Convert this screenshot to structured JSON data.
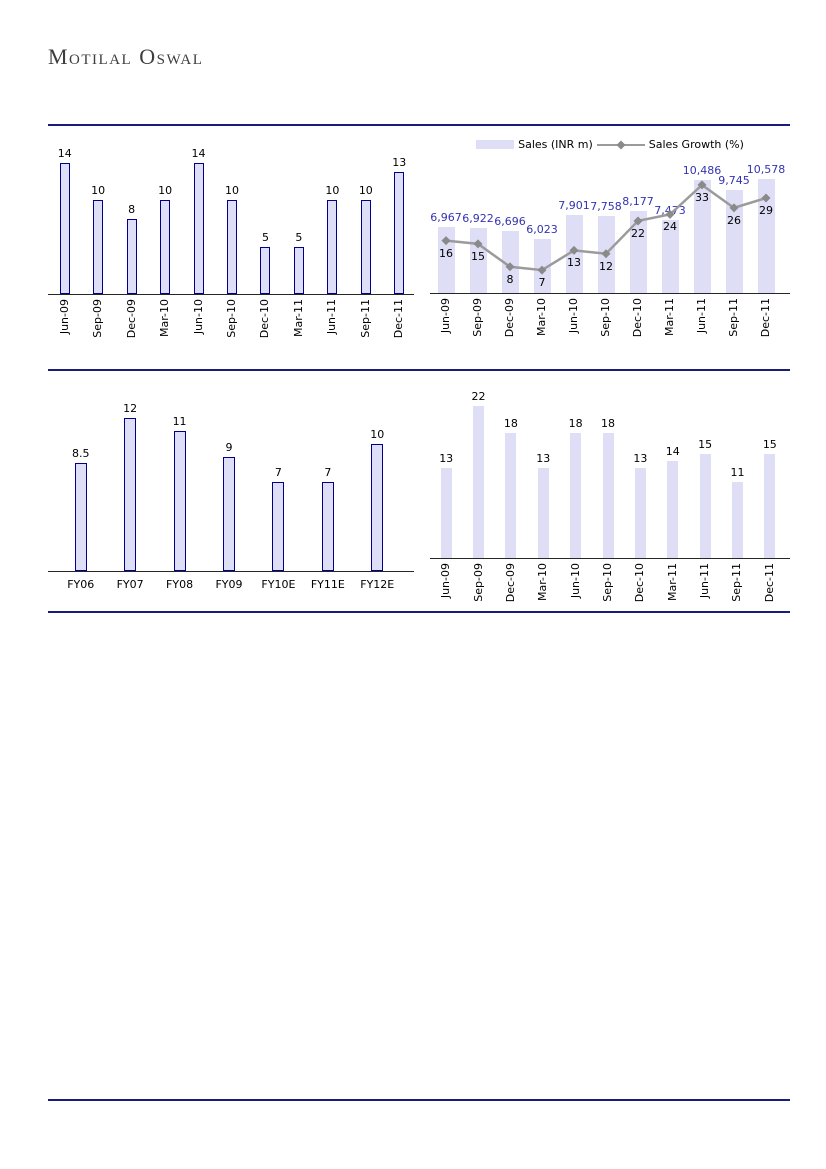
{
  "header": {
    "brand": "Motilal Oswal"
  },
  "colors": {
    "bar_fill": "#DEDEF6",
    "bar_border": "#00008B",
    "rule": "#1B1B7A",
    "axis": "#262626",
    "sales_label": "#3333B3",
    "growth_line": "#9B9B9B",
    "growth_marker": "#8A8A8A",
    "label_text": "#000000",
    "logo_text": "#3D3D3D"
  },
  "chart_data": [
    {
      "type": "bar",
      "name": "quarterly-growth-top-left",
      "categories": [
        "Jun-09",
        "Sep-09",
        "Dec-09",
        "Mar-10",
        "Jun-10",
        "Sep-10",
        "Dec-10",
        "Mar-11",
        "Jun-11",
        "Sep-11",
        "Dec-11"
      ],
      "values": [
        14,
        10,
        8,
        10,
        14,
        10,
        5,
        5,
        10,
        10,
        13
      ],
      "labels": [
        "14",
        "10",
        "8",
        "10",
        "14",
        "10",
        "5",
        "5",
        "10",
        "10",
        "13"
      ],
      "ylim": [
        0,
        16
      ],
      "grid": false,
      "x_labels_rotated": true,
      "bar_style": "bordered-narrow"
    },
    {
      "type": "bar+line",
      "name": "sales-and-sales-growth",
      "categories": [
        "Jun-09",
        "Sep-09",
        "Dec-09",
        "Mar-10",
        "Jun-10",
        "Sep-10",
        "Dec-10",
        "Mar-11",
        "Jun-11",
        "Sep-11",
        "Dec-11"
      ],
      "series": [
        {
          "name": "Sales (INR m)",
          "type": "bar",
          "values": [
            6967,
            6922,
            6696,
            6023,
            7901,
            7758,
            8177,
            7473,
            10486,
            9745,
            10578
          ],
          "labels": [
            "6,967",
            "6,922",
            "6,696",
            "6,023",
            "7,901",
            "7,758",
            "8,177",
            "7,473",
            "10,486",
            "9,745",
            "10,578"
          ],
          "axis": [
            2000,
            12000
          ]
        },
        {
          "name": "Sales Growth (%)",
          "type": "line",
          "values": [
            16,
            15,
            8,
            7,
            13,
            12,
            22,
            24,
            33,
            26,
            29
          ],
          "labels": [
            "16",
            "15",
            "8",
            "7",
            "13",
            "12",
            "22",
            "24",
            "33",
            "26",
            "29"
          ],
          "axis": [
            0,
            40
          ]
        }
      ],
      "legend_position": "top",
      "grid": false,
      "x_labels_rotated": true,
      "bar_style": "plain-wide"
    },
    {
      "type": "bar",
      "name": "fy-metric-bottom-left",
      "categories": [
        "FY06",
        "FY07",
        "FY08",
        "FY09",
        "FY10E",
        "FY11E",
        "FY12E"
      ],
      "values": [
        8.5,
        12,
        11,
        9,
        7,
        7,
        10
      ],
      "labels": [
        "8.5",
        "12",
        "11",
        "9",
        "7",
        "7",
        "10"
      ],
      "ylim": [
        0,
        14
      ],
      "grid": false,
      "x_labels_rotated": false,
      "bar_style": "bordered-narrow"
    },
    {
      "type": "bar",
      "name": "quarterly-metric-bottom-right",
      "categories": [
        "Jun-09",
        "Sep-09",
        "Dec-09",
        "Mar-10",
        "Jun-10",
        "Sep-10",
        "Dec-10",
        "Mar-11",
        "Jun-11",
        "Sep-11",
        "Dec-11"
      ],
      "values": [
        13,
        22,
        18,
        13,
        18,
        18,
        13,
        14,
        15,
        11,
        15
      ],
      "labels": [
        "13",
        "22",
        "18",
        "13",
        "18",
        "18",
        "13",
        "14",
        "15",
        "11",
        "15"
      ],
      "ylim": [
        0,
        25
      ],
      "grid": false,
      "x_labels_rotated": true,
      "bar_style": "plain-narrow"
    }
  ]
}
